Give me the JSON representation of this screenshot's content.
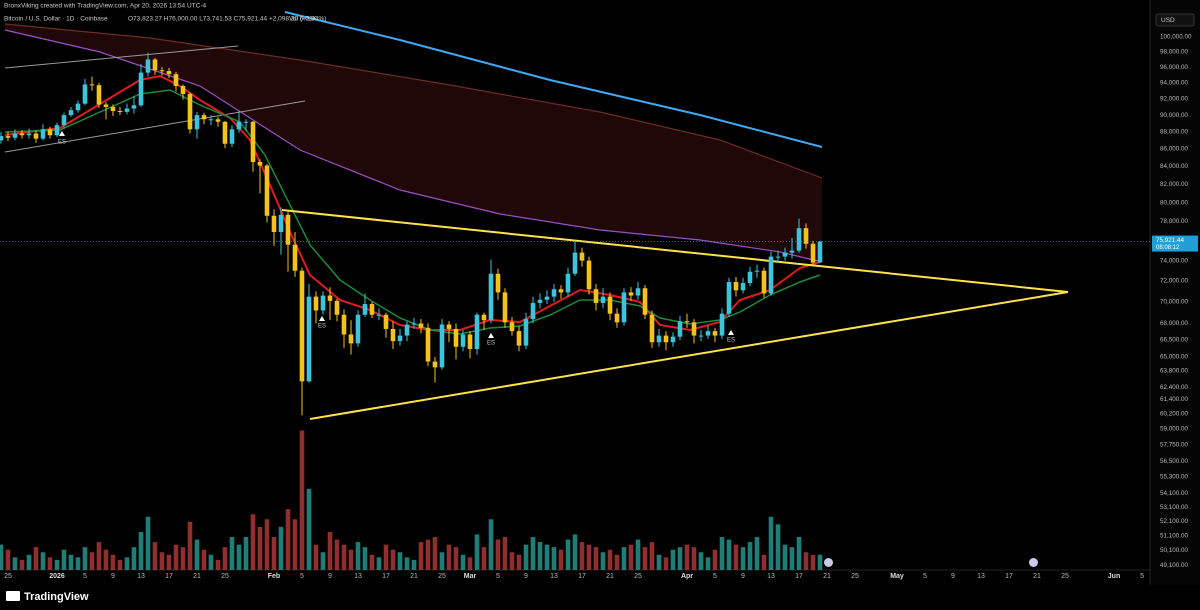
{
  "header": {
    "credit": "BronxViking created with TradingView.com, Apr 20, 2026 13:54 UTC-4",
    "symbol": "Bitcoin / U.S. Dollar · 1D · Coinbase",
    "ohlc": "O73,823.27 H76,000.00 L73,741.53 C75,921.44 +2,098.30 (+2.84%)",
    "volume": "Vol 6.02K",
    "currency": "USD"
  },
  "chart_data": {
    "type": "candlestick",
    "open": [
      87000,
      87500,
      87300,
      87800,
      87600,
      87800,
      87200,
      88300,
      87600,
      88800,
      90000,
      90600,
      91400,
      93800,
      93700,
      91300,
      91000,
      90500,
      90400,
      90800,
      91200,
      95300,
      97000,
      95600,
      95500,
      95100,
      93600,
      92600,
      88300,
      90000,
      89500,
      89500,
      89200,
      86600,
      88300,
      89200,
      89200,
      84500,
      84100,
      78600,
      76900,
      78700,
      75600,
      73000,
      62900,
      70500,
      69200,
      70600,
      70100,
      68800,
      67000,
      66200,
      68800,
      69800,
      68800,
      68800,
      67500,
      66400,
      66900,
      67900,
      68000,
      67600,
      64600,
      64100,
      67900,
      67500,
      65900,
      67000,
      65700,
      68800,
      68300,
      72700,
      70900,
      68100,
      67300,
      66000,
      68400,
      69900,
      70200,
      70500,
      71200,
      70900,
      72700,
      74800,
      74000,
      71200,
      69900,
      70500,
      68900,
      68100,
      70900,
      70600,
      71300,
      68800,
      66300,
      66900,
      66300,
      66800,
      68200,
      68100,
      66900,
      66900,
      67300,
      66900,
      68900,
      71900,
      71100,
      71800,
      72900,
      73000,
      70800,
      74400,
      74400,
      74800,
      75000,
      77300,
      75700,
      73823.27
    ],
    "high": [
      88000,
      88000,
      88300,
      88200,
      88400,
      88200,
      88900,
      88600,
      89100,
      90300,
      91000,
      91800,
      94500,
      94800,
      94000,
      91600,
      91300,
      91000,
      91400,
      92300,
      96400,
      97900,
      97200,
      96000,
      95900,
      95400,
      93800,
      92800,
      90400,
      90300,
      90000,
      89800,
      89300,
      88800,
      90500,
      89500,
      89300,
      84800,
      84300,
      79300,
      79500,
      79200,
      76900,
      73300,
      71700,
      71000,
      71000,
      71400,
      70300,
      69300,
      68300,
      69200,
      70800,
      70000,
      69400,
      69000,
      68200,
      67500,
      68200,
      68500,
      68400,
      68000,
      65000,
      68400,
      68200,
      68000,
      67400,
      67300,
      69000,
      69000,
      74100,
      73200,
      71300,
      68600,
      67800,
      69000,
      70500,
      70800,
      71100,
      71700,
      71600,
      73300,
      76000,
      75300,
      74400,
      71700,
      71300,
      70900,
      69400,
      71300,
      71400,
      71900,
      71600,
      69200,
      67500,
      67300,
      67200,
      68700,
      68900,
      68400,
      67400,
      67800,
      67600,
      69400,
      72300,
      72400,
      72300,
      73400,
      73600,
      73300,
      74900,
      75000,
      75300,
      76300,
      78300,
      77800,
      76000,
      76000
    ],
    "low": [
      86600,
      86900,
      87000,
      87200,
      87200,
      86700,
      87000,
      87200,
      87400,
      88500,
      89800,
      90300,
      91200,
      93000,
      90900,
      89500,
      89900,
      90000,
      90100,
      90200,
      91000,
      94800,
      95000,
      94900,
      94600,
      92900,
      91900,
      87800,
      87200,
      88900,
      88800,
      88600,
      86100,
      86200,
      87900,
      88100,
      83400,
      81000,
      77900,
      75500,
      74600,
      72900,
      72400,
      60100,
      62800,
      68000,
      68800,
      68300,
      68200,
      65800,
      65200,
      65900,
      68600,
      68500,
      68300,
      66700,
      65700,
      66000,
      66400,
      67500,
      67100,
      64200,
      62800,
      63900,
      66300,
      64800,
      65500,
      64900,
      65200,
      67400,
      68000,
      70200,
      67600,
      66900,
      65500,
      65700,
      68000,
      69400,
      69800,
      70000,
      70300,
      70500,
      72500,
      73400,
      70700,
      69200,
      69400,
      68300,
      67600,
      67800,
      70100,
      70200,
      68400,
      65800,
      65900,
      65600,
      65900,
      66500,
      67600,
      66200,
      66400,
      66600,
      66300,
      66600,
      68600,
      70500,
      70800,
      71500,
      72300,
      70400,
      70600,
      73800,
      74000,
      74200,
      74800,
      75200,
      73400,
      73741.53
    ],
    "close": [
      87500,
      87300,
      87800,
      87600,
      87800,
      87200,
      88300,
      87600,
      88800,
      90000,
      90600,
      91400,
      93800,
      93700,
      91300,
      91000,
      90500,
      90400,
      90800,
      91200,
      95300,
      97000,
      95600,
      95500,
      95100,
      93600,
      92600,
      88300,
      90000,
      89500,
      89500,
      89200,
      86600,
      88300,
      89200,
      89200,
      84500,
      84100,
      78600,
      76900,
      78700,
      75600,
      73000,
      62900,
      70500,
      69200,
      70600,
      70100,
      68800,
      67000,
      66200,
      68800,
      69800,
      68800,
      68800,
      67500,
      66400,
      66900,
      67900,
      68000,
      67600,
      64600,
      64100,
      67900,
      67500,
      65900,
      67000,
      65700,
      68800,
      68300,
      72700,
      70900,
      68100,
      67300,
      66000,
      68400,
      69900,
      70200,
      70500,
      71200,
      70900,
      72700,
      74800,
      74000,
      71200,
      69900,
      70500,
      68900,
      68100,
      70900,
      70600,
      71300,
      68800,
      66300,
      66900,
      66300,
      66800,
      68200,
      68100,
      66900,
      66900,
      67300,
      66900,
      68900,
      71900,
      71100,
      71800,
      72900,
      73000,
      70800,
      74400,
      74400,
      74800,
      75000,
      77300,
      75700,
      73800,
      75921.44
    ],
    "volume": [
      10,
      8,
      5,
      4,
      6,
      9,
      7,
      5,
      4,
      8,
      6,
      5,
      9,
      7,
      11,
      8,
      6,
      4,
      5,
      9,
      15,
      21,
      11,
      7,
      6,
      10,
      9,
      19,
      12,
      8,
      6,
      4,
      9,
      13,
      10,
      13,
      22,
      17,
      20,
      13,
      17,
      24,
      20,
      55,
      32,
      10,
      7,
      15,
      12,
      10,
      8,
      11,
      9,
      6,
      5,
      10,
      8,
      7,
      5,
      4,
      11,
      12,
      13,
      7,
      10,
      9,
      6,
      5,
      14,
      9,
      20,
      12,
      13,
      7,
      6,
      10,
      13,
      11,
      10,
      9,
      8,
      12,
      14,
      11,
      10,
      9,
      7,
      8,
      6,
      9,
      10,
      12,
      9,
      11,
      6,
      5,
      8,
      9,
      10,
      9,
      7,
      5,
      8,
      13,
      12,
      10,
      9,
      11,
      13,
      6,
      21,
      18,
      10,
      9,
      13,
      7,
      6,
      6.02
    ],
    "xlim": [
      -0.14,
      164.14
    ],
    "xticks": [
      {
        "value": 1,
        "label": "25"
      },
      {
        "value": 8,
        "label": "2026"
      },
      {
        "value": 12,
        "label": "5"
      },
      {
        "value": 16,
        "label": "9"
      },
      {
        "value": 20,
        "label": "13"
      },
      {
        "value": 24,
        "label": "17"
      },
      {
        "value": 28,
        "label": "21"
      },
      {
        "value": 32,
        "label": "25"
      },
      {
        "value": 39,
        "label": "Feb"
      },
      {
        "value": 43,
        "label": "5"
      },
      {
        "value": 47,
        "label": "9"
      },
      {
        "value": 51,
        "label": "13"
      },
      {
        "value": 55,
        "label": "17"
      },
      {
        "value": 59,
        "label": "21"
      },
      {
        "value": 63,
        "label": "25"
      },
      {
        "value": 67,
        "label": "Mar"
      },
      {
        "value": 71,
        "label": "5"
      },
      {
        "value": 75,
        "label": "9"
      },
      {
        "value": 79,
        "label": "13"
      },
      {
        "value": 83,
        "label": "17"
      },
      {
        "value": 87,
        "label": "21"
      },
      {
        "value": 91,
        "label": "25"
      },
      {
        "value": 98,
        "label": "Apr"
      },
      {
        "value": 102,
        "label": "5"
      },
      {
        "value": 106,
        "label": "9"
      },
      {
        "value": 110,
        "label": "13"
      },
      {
        "value": 114,
        "label": "17"
      },
      {
        "value": 118,
        "label": "21"
      },
      {
        "value": 122,
        "label": "25"
      },
      {
        "value": 128,
        "label": "May"
      },
      {
        "value": 132,
        "label": "5"
      },
      {
        "value": 136,
        "label": "9"
      },
      {
        "value": 140,
        "label": "13"
      },
      {
        "value": 144,
        "label": "17"
      },
      {
        "value": 148,
        "label": "21"
      },
      {
        "value": 152,
        "label": "25"
      },
      {
        "value": 159,
        "label": "Jun"
      },
      {
        "value": 163,
        "label": "5"
      }
    ],
    "ylim": [
      48800,
      103400
    ],
    "log_scale": true,
    "yticks": [
      {
        "value": 100000,
        "label": "100,000.00"
      },
      {
        "value": 98000,
        "label": "98,000.00"
      },
      {
        "value": 96000,
        "label": "96,000.00"
      },
      {
        "value": 94000,
        "label": "94,000.00"
      },
      {
        "value": 92000,
        "label": "92,000.00"
      },
      {
        "value": 90000,
        "label": "90,000.00"
      },
      {
        "value": 88000,
        "label": "88,000.00"
      },
      {
        "value": 86000,
        "label": "86,000.00"
      },
      {
        "value": 84000,
        "label": "84,000.00"
      },
      {
        "value": 82000,
        "label": "82,000.00"
      },
      {
        "value": 80000,
        "label": "80,000.00"
      },
      {
        "value": 78000,
        "label": "78,000.00"
      },
      {
        "value": 74000,
        "label": "74,000.00"
      },
      {
        "value": 72000,
        "label": "72,000.00"
      },
      {
        "value": 70000,
        "label": "70,000.00"
      },
      {
        "value": 68000,
        "label": "68,000.00"
      },
      {
        "value": 66500,
        "label": "66,500.00"
      },
      {
        "value": 65000,
        "label": "65,000.00"
      },
      {
        "value": 63800,
        "label": "63,800.00"
      },
      {
        "value": 62400,
        "label": "62,400.00"
      },
      {
        "value": 61400,
        "label": "61,400.00"
      },
      {
        "value": 60200,
        "label": "60,200.00"
      },
      {
        "value": 59000,
        "label": "59,000.00"
      },
      {
        "value": 57750,
        "label": "57,750.00"
      },
      {
        "value": 56500,
        "label": "56,500.00"
      },
      {
        "value": 55300,
        "label": "55,300.00"
      },
      {
        "value": 54100,
        "label": "54,100.00"
      },
      {
        "value": 53100,
        "label": "53,100.00"
      },
      {
        "value": 52100,
        "label": "52,100.00"
      },
      {
        "value": 51100,
        "label": "51,100.00"
      },
      {
        "value": 50100,
        "label": "50,100.00"
      },
      {
        "value": 49100,
        "label": "49,100.00"
      }
    ],
    "volume_ylim": [
      0,
      220
    ],
    "up_color": "#3cc4dc",
    "down_color": "#f5c21b",
    "volume_up_color": "#1f7f78",
    "volume_down_color": "#8f2f2f",
    "last_price": {
      "value": 75921.44,
      "label": "75,921.44"
    },
    "countdown": "08:08:12",
    "annotations": [
      "ES",
      "ES",
      "ES",
      "ES"
    ]
  },
  "footer": {
    "logo": "TradingView"
  }
}
